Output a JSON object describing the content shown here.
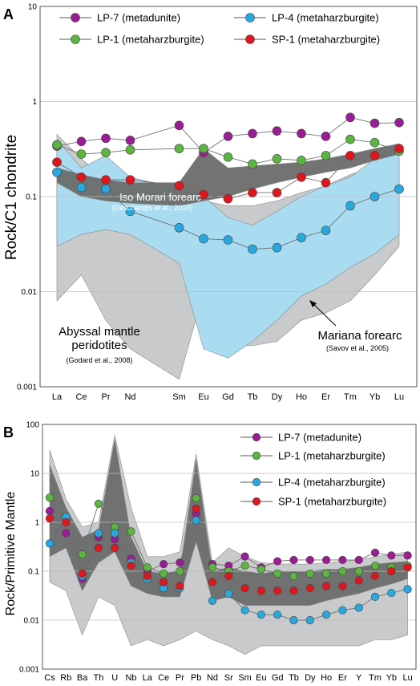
{
  "chart_data": [
    {
      "panel": "A",
      "type": "line",
      "scale": "log",
      "ylabel": "Rock/C1 chondrite",
      "ylim": [
        0.001,
        10
      ],
      "yticks": [
        "10",
        "1",
        "0.1",
        "0.01",
        "0.001"
      ],
      "categories": [
        "La",
        "Ce",
        "Pr",
        "Nd",
        "Sm",
        "Eu",
        "Gd",
        "Tb",
        "Dy",
        "Ho",
        "Er",
        "Tm",
        "Yb",
        "Lu"
      ],
      "cat_slots": [
        0,
        1,
        2,
        3,
        5,
        6,
        7,
        8,
        9,
        10,
        11,
        12,
        13,
        14
      ],
      "series": [
        {
          "name": "LP-7 (metadunite)",
          "color": "#9b1d96",
          "values": [
            0.34,
            0.38,
            0.41,
            0.39,
            0.56,
            0.29,
            0.43,
            0.46,
            0.49,
            0.46,
            0.43,
            0.68,
            0.59,
            0.6
          ]
        },
        {
          "name": "LP-1 (metaharzburgite)",
          "color": "#5bb540",
          "values": [
            0.35,
            0.28,
            0.29,
            0.31,
            0.32,
            0.32,
            0.26,
            0.22,
            0.25,
            0.24,
            0.27,
            0.4,
            0.37,
            0.3
          ]
        },
        {
          "name": "LP-4 (metaharzburgite)",
          "color": "#27a8e0",
          "values": [
            0.18,
            0.125,
            0.12,
            0.07,
            0.047,
            0.036,
            0.035,
            0.028,
            0.029,
            0.037,
            0.044,
            0.08,
            0.1,
            0.12
          ]
        },
        {
          "name": "SP-1 (metaharzburgite)",
          "color": "#e0161c",
          "values": [
            0.23,
            0.16,
            0.15,
            0.15,
            0.13,
            0.105,
            0.095,
            0.11,
            0.11,
            0.16,
            0.14,
            0.27,
            0.27,
            0.32
          ]
        }
      ],
      "fields": [
        {
          "name": "abyssal",
          "color": "#c9cacc",
          "lower": [
            0.008,
            0.015,
            0.005,
            0.0025,
            0.0012,
            0.01,
            0.0027,
            0.0027,
            0.003,
            0.005,
            0.006,
            0.008,
            0.015,
            0.03
          ],
          "upper": [
            0.45,
            0.25,
            0.15,
            0.12,
            0.07,
            0.09,
            0.08,
            0.08,
            0.09,
            0.11,
            0.13,
            0.17,
            0.21,
            0.25
          ]
        },
        {
          "name": "mariana",
          "color": "#a9dcf1",
          "lower": [
            0.03,
            0.04,
            0.045,
            0.04,
            0.02,
            0.0025,
            0.002,
            0.003,
            0.005,
            0.009,
            0.012,
            0.018,
            0.025,
            0.04
          ],
          "upper": [
            0.4,
            0.2,
            0.27,
            0.16,
            0.12,
            0.1,
            0.06,
            0.05,
            0.07,
            0.1,
            0.13,
            0.16,
            0.25,
            0.34
          ]
        },
        {
          "name": "isomorari",
          "color": "#6b6b6b",
          "lower": [
            0.14,
            0.1,
            0.09,
            0.085,
            0.08,
            0.09,
            0.1,
            0.12,
            0.14,
            0.16,
            0.18,
            0.2,
            0.24,
            0.28
          ],
          "upper": [
            0.2,
            0.17,
            0.15,
            0.14,
            0.14,
            0.32,
            0.2,
            0.21,
            0.22,
            0.23,
            0.25,
            0.28,
            0.32,
            0.36
          ]
        }
      ],
      "legend": {
        "placement": "top",
        "items": [
          "LP-7 (metadunite)",
          "LP-1 (metaharzburgite)",
          "LP-4 (metaharzburgite)",
          "SP-1 (metaharzburgite)"
        ]
      },
      "annotations": {
        "isomorari_title": "Iso Morari forearc",
        "isomorari_ref": "(Deschamps et al., 2010)",
        "abyssal_line1": "Abyssal mantle",
        "abyssal_line2": "peridotites",
        "abyssal_ref": "(Godard et al., 2008)",
        "mariana_title": "Mariana forearc",
        "mariana_ref": "(Savov et al., 2005)"
      }
    },
    {
      "panel": "B",
      "type": "line",
      "scale": "log",
      "ylabel": "Rock/Primitive Mantle",
      "ylim": [
        0.001,
        100
      ],
      "yticks": [
        "100",
        "10",
        "1",
        "0.1",
        "0.01",
        "0.001"
      ],
      "categories": [
        "Cs",
        "Rb",
        "Ba",
        "Th",
        "U",
        "Nb",
        "La",
        "Ce",
        "Pr",
        "Pb",
        "Nd",
        "Sr",
        "Sm",
        "Eu",
        "Gd",
        "Tb",
        "Dy",
        "Ho",
        "Er",
        "Y",
        "Tm",
        "Yb",
        "Lu"
      ],
      "series": [
        {
          "name": "LP-7 (metadunite)",
          "color": "#9b1d96",
          "values": [
            1.7,
            0.6,
            0.07,
            0.5,
            0.45,
            0.18,
            0.1,
            0.14,
            0.15,
            1.5,
            0.14,
            0.13,
            0.2,
            0.12,
            0.16,
            0.17,
            0.17,
            0.17,
            0.17,
            0.17,
            0.24,
            0.21,
            0.21
          ]
        },
        {
          "name": "LP-1 (metaharzburgite)",
          "color": "#5bb540",
          "values": [
            3.2,
            1.3,
            0.22,
            2.4,
            0.8,
            0.65,
            0.12,
            0.09,
            0.1,
            3.1,
            0.12,
            0.1,
            0.13,
            0.11,
            0.09,
            0.08,
            0.09,
            0.09,
            0.1,
            0.1,
            0.13,
            0.12,
            0.13
          ]
        },
        {
          "name": "LP-4 (metaharzburgite)",
          "color": "#27a8e0",
          "values": [
            0.37,
            1.3,
            0.08,
            0.6,
            0.6,
            0.15,
            0.07,
            0.045,
            0.045,
            1.1,
            0.025,
            0.035,
            0.016,
            0.013,
            0.013,
            0.01,
            0.01,
            0.013,
            0.016,
            0.018,
            0.03,
            0.036,
            0.043
          ]
        },
        {
          "name": "SP-1 (metaharzburgite)",
          "color": "#e0161c",
          "values": [
            1.2,
            1.0,
            0.09,
            0.3,
            0.3,
            0.13,
            0.08,
            0.06,
            0.05,
            1.9,
            0.06,
            0.08,
            0.045,
            0.04,
            0.04,
            0.04,
            0.045,
            0.05,
            0.05,
            0.065,
            0.08,
            0.1,
            0.12
          ]
        }
      ],
      "fields": [
        {
          "name": "light",
          "color": "#c9cacc",
          "lower": [
            0.06,
            0.04,
            0.005,
            0.03,
            0.02,
            0.003,
            0.004,
            0.003,
            0.004,
            0.006,
            0.004,
            0.003,
            0.002,
            0.003,
            0.003,
            0.003,
            0.003,
            0.003,
            0.003,
            0.003,
            0.004,
            0.004,
            0.005
          ],
          "upper": [
            30,
            3,
            0.8,
            1.0,
            60,
            2.0,
            0.2,
            0.2,
            0.25,
            25,
            0.15,
            0.3,
            0.2,
            0.15,
            0.14,
            0.14,
            0.14,
            0.15,
            0.16,
            0.17,
            0.2,
            0.22,
            0.25
          ]
        },
        {
          "name": "dark",
          "color": "#6b6b6b",
          "lower": [
            0.2,
            0.3,
            0.04,
            0.15,
            0.25,
            0.05,
            0.035,
            0.03,
            0.03,
            0.4,
            0.025,
            0.03,
            0.02,
            0.02,
            0.02,
            0.02,
            0.02,
            0.025,
            0.03,
            0.035,
            0.045,
            0.055,
            0.07
          ],
          "upper": [
            15,
            2.0,
            0.5,
            0.7,
            50,
            0.5,
            0.1,
            0.09,
            0.1,
            20,
            0.1,
            0.12,
            0.1,
            0.09,
            0.1,
            0.1,
            0.1,
            0.11,
            0.11,
            0.12,
            0.14,
            0.15,
            0.16
          ]
        }
      ],
      "legend": {
        "placement": "top-right",
        "items": [
          "LP-7 (metadunite)",
          "LP-1 (metaharzburgite)",
          "LP-4 (metaharzburgite)",
          "SP-1 (metaharzburgite)"
        ]
      }
    }
  ]
}
